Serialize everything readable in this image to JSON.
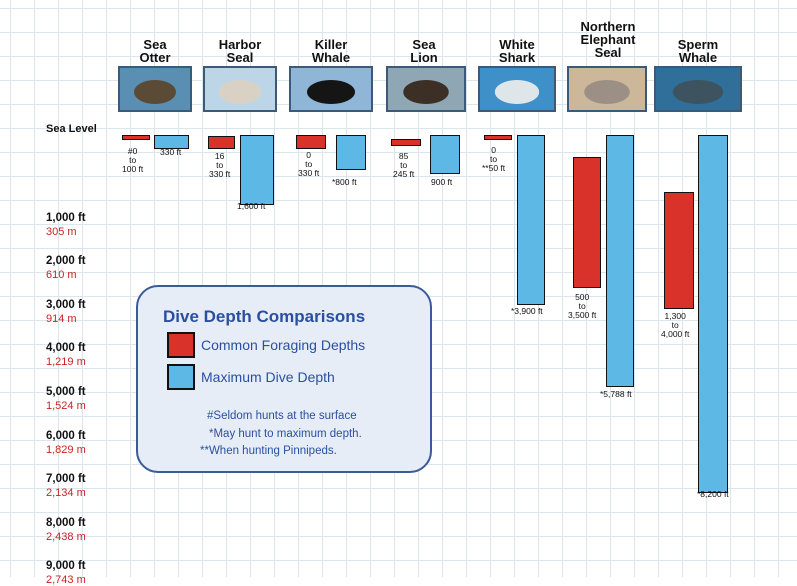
{
  "colors": {
    "foraging": "#d8322a",
    "maximum": "#5db8e6",
    "legend_text": "#2b4fa0",
    "meters": "#cc2222"
  },
  "axis": {
    "sea_level_label": "Sea Level",
    "ticks": [
      {
        "ft": "1,000 ft",
        "m": "305 m"
      },
      {
        "ft": "2,000 ft",
        "m": "610 m"
      },
      {
        "ft": "3,000 ft",
        "m": "914 m"
      },
      {
        "ft": "4,000 ft",
        "m": "1,219 m"
      },
      {
        "ft": "5,000 ft",
        "m": "1,524 m"
      },
      {
        "ft": "6,000 ft",
        "m": "1,829 m"
      },
      {
        "ft": "7,000 ft",
        "m": "2,134 m"
      },
      {
        "ft": "8,000 ft",
        "m": "2,438 m"
      },
      {
        "ft": "9,000 ft",
        "m": "2,743 m"
      }
    ]
  },
  "animals": [
    {
      "name": "Sea\nOtter",
      "photo": "sea-otter",
      "forage_label": "#0\nto\n100 ft",
      "max_label": "330 ft"
    },
    {
      "name": "Harbor\nSeal",
      "photo": "harbor-seal",
      "forage_label": "16\nto\n330 ft",
      "max_label": "1,600 ft"
    },
    {
      "name": "Killer\nWhale",
      "photo": "killer-whale",
      "forage_label": "0\nto\n330 ft",
      "max_label": "*800 ft"
    },
    {
      "name": "Sea\nLion",
      "photo": "sea-lion",
      "forage_label": "85\nto\n245 ft",
      "max_label": "900 ft"
    },
    {
      "name": "White\nShark",
      "photo": "white-shark",
      "forage_label": "0\nto\n**50 ft",
      "max_label": "*3,900 ft"
    },
    {
      "name": "Northern\nElephant\nSeal",
      "photo": "elephant-seal",
      "forage_label": "500\nto\n3,500 ft",
      "max_label": "*5,788 ft"
    },
    {
      "name": "Sperm\nWhale",
      "photo": "sperm-whale",
      "forage_label": "1,300\nto\n4,000 ft",
      "max_label": "*8,200 ft"
    }
  ],
  "legend": {
    "title": "Dive Depth Comparisons",
    "foraging_label": "Common Foraging Depths",
    "maximum_label": "Maximum Dive Depth",
    "notes": [
      "#Seldom hunts at the surface",
      "*May hunt to maximum depth.",
      "**When hunting Pinnipeds."
    ]
  },
  "chart_data": {
    "type": "bar",
    "y_unit": "ft",
    "ylim": [
      0,
      9000
    ],
    "orientation": "depth-downward",
    "categories": [
      "Sea Otter",
      "Harbor Seal",
      "Killer Whale",
      "Sea Lion",
      "White Shark",
      "Northern Elephant Seal",
      "Sperm Whale"
    ],
    "series": [
      {
        "name": "Common Foraging Depths",
        "ranges": [
          [
            0,
            100
          ],
          [
            16,
            330
          ],
          [
            0,
            330
          ],
          [
            85,
            245
          ],
          [
            0,
            50
          ],
          [
            500,
            3500
          ],
          [
            1300,
            4000
          ]
        ]
      },
      {
        "name": "Maximum Dive Depth",
        "values": [
          330,
          1600,
          800,
          900,
          3900,
          5788,
          8200
        ]
      }
    ]
  }
}
